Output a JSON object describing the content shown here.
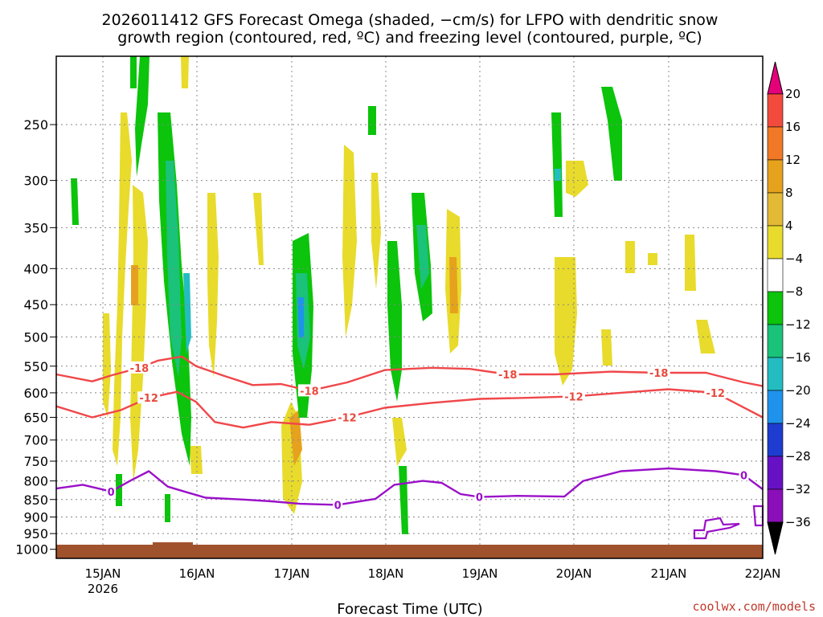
{
  "chart_data": {
    "type": "heatmap",
    "title_line1": "2026011412 GFS Forecast Omega (shaded, −cm/s) for LFPO with dendritic snow",
    "title_line2": "growth region (contoured, red, ºC) and freezing level (contoured, purple, ºC)",
    "xlabel": "Forecast Time (UTC)",
    "credit": "coolwx.com/models",
    "x_ticks": [
      "15JAN",
      "16JAN",
      "17JAN",
      "18JAN",
      "19JAN",
      "20JAN",
      "21JAN",
      "22JAN"
    ],
    "x_tick_sub": "2026",
    "x_range_days": [
      14.52,
      22.0
    ],
    "y_ticks": [
      250,
      300,
      350,
      400,
      450,
      500,
      550,
      600,
      650,
      700,
      750,
      800,
      850,
      900,
      950,
      1000
    ],
    "y_range_hpa": [
      200,
      1030
    ],
    "colorbar": {
      "labels": [
        "20",
        "16",
        "12",
        "8",
        "4",
        "−4",
        "−8",
        "−12",
        "−16",
        "−20",
        "−24",
        "−28",
        "−32",
        "−36"
      ],
      "colors": [
        "#e5007a",
        "#f24b3e",
        "#f07826",
        "#e6a21d",
        "#e3b936",
        "#e8db2b",
        "#ffffff",
        "#0bc40b",
        "#1ac27a",
        "#23bdc1",
        "#1f93ec",
        "#1e3ccf",
        "#6612c4",
        "#8b0fb8",
        "#a300c8",
        "#a0a0a0",
        "#000000"
      ]
    },
    "series": [
      {
        "name": "-18 C isotherm",
        "color": "#f0474a",
        "label": "-18",
        "points": [
          [
            14.52,
            565
          ],
          [
            14.9,
            578
          ],
          [
            15.1,
            567
          ],
          [
            15.4,
            553
          ],
          [
            15.6,
            540
          ],
          [
            15.85,
            533
          ],
          [
            16.0,
            550
          ],
          [
            16.3,
            568
          ],
          [
            16.6,
            585
          ],
          [
            16.9,
            583
          ],
          [
            17.2,
            596
          ],
          [
            17.6,
            580
          ],
          [
            18.0,
            557
          ],
          [
            18.5,
            553
          ],
          [
            18.9,
            555
          ],
          [
            19.3,
            565
          ],
          [
            19.8,
            565
          ],
          [
            20.4,
            560
          ],
          [
            20.9,
            562
          ],
          [
            21.4,
            562
          ],
          [
            21.8,
            580
          ],
          [
            22.0,
            587
          ]
        ]
      },
      {
        "name": "-12 C isotherm",
        "color": "#f0474a",
        "label": "-12",
        "points": [
          [
            14.52,
            627
          ],
          [
            14.9,
            650
          ],
          [
            15.2,
            635
          ],
          [
            15.5,
            610
          ],
          [
            15.8,
            598
          ],
          [
            16.0,
            618
          ],
          [
            16.2,
            660
          ],
          [
            16.5,
            672
          ],
          [
            16.8,
            660
          ],
          [
            17.2,
            666
          ],
          [
            17.6,
            650
          ],
          [
            18.0,
            630
          ],
          [
            18.5,
            620
          ],
          [
            19.0,
            612
          ],
          [
            19.5,
            610
          ],
          [
            20.0,
            607
          ],
          [
            20.5,
            600
          ],
          [
            21.0,
            593
          ],
          [
            21.5,
            600
          ],
          [
            22.0,
            650
          ]
        ]
      },
      {
        "name": "0 C isotherm (freezing level)",
        "color": "#9a10c8",
        "label": "0",
        "points": [
          [
            14.52,
            820
          ],
          [
            14.8,
            810
          ],
          [
            15.1,
            828
          ],
          [
            15.3,
            800
          ],
          [
            15.5,
            775
          ],
          [
            15.7,
            815
          ],
          [
            15.9,
            830
          ],
          [
            16.1,
            845
          ],
          [
            16.5,
            850
          ],
          [
            16.8,
            855
          ],
          [
            17.1,
            862
          ],
          [
            17.5,
            865
          ],
          [
            17.9,
            848
          ],
          [
            18.1,
            810
          ],
          [
            18.4,
            800
          ],
          [
            18.6,
            805
          ],
          [
            18.8,
            835
          ],
          [
            19.0,
            843
          ],
          [
            19.4,
            840
          ],
          [
            19.9,
            842
          ],
          [
            20.1,
            800
          ],
          [
            20.5,
            775
          ],
          [
            21.0,
            768
          ],
          [
            21.5,
            775
          ],
          [
            21.8,
            785
          ],
          [
            22.0,
            822
          ]
        ]
      }
    ]
  }
}
